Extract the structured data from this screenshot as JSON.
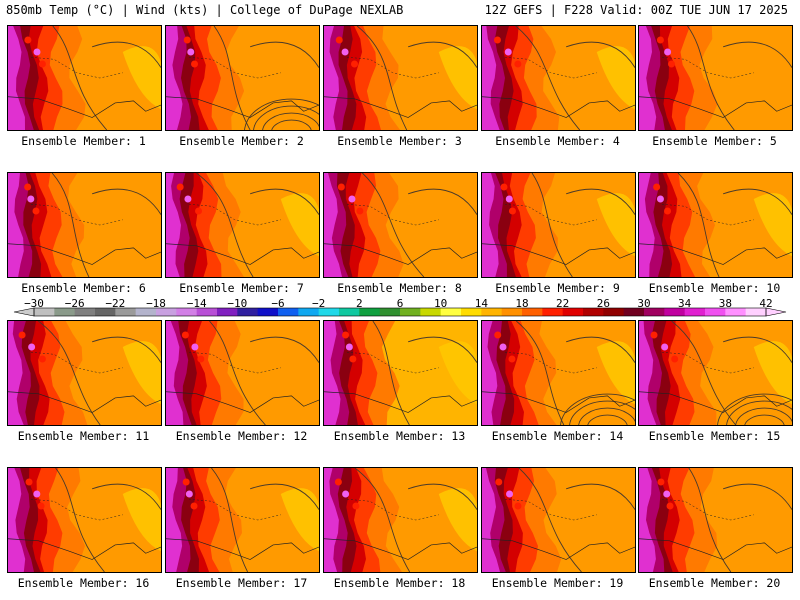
{
  "header": {
    "left": "850mb Temp (°C) | Wind (kts) | College of DuPage NEXLAB",
    "right": "12Z GEFS | F228 Valid: 00Z TUE JUN 17 2025"
  },
  "members": [
    {
      "label": "Ensemble Member: 1",
      "warmth": 0.45
    },
    {
      "label": "Ensemble Member: 2",
      "warmth": 0.35
    },
    {
      "label": "Ensemble Member: 3",
      "warmth": 0.5
    },
    {
      "label": "Ensemble Member: 4",
      "warmth": 0.55
    },
    {
      "label": "Ensemble Member: 5",
      "warmth": 0.4
    },
    {
      "label": "Ensemble Member: 6",
      "warmth": 0.4
    },
    {
      "label": "Ensemble Member: 7",
      "warmth": 0.55
    },
    {
      "label": "Ensemble Member: 8",
      "warmth": 0.35
    },
    {
      "label": "Ensemble Member: 9",
      "warmth": 0.5
    },
    {
      "label": "Ensemble Member: 10",
      "warmth": 0.5
    },
    {
      "label": "Ensemble Member: 11",
      "warmth": 0.45
    },
    {
      "label": "Ensemble Member: 12",
      "warmth": 0.4
    },
    {
      "label": "Ensemble Member: 13",
      "warmth": 0.6
    },
    {
      "label": "Ensemble Member: 14",
      "warmth": 0.55
    },
    {
      "label": "Ensemble Member: 15",
      "warmth": 0.5
    },
    {
      "label": "Ensemble Member: 16",
      "warmth": 0.55
    },
    {
      "label": "Ensemble Member: 17",
      "warmth": 0.45
    },
    {
      "label": "Ensemble Member: 18",
      "warmth": 0.5
    },
    {
      "label": "Ensemble Member: 19",
      "warmth": 0.4
    },
    {
      "label": "Ensemble Member: 20",
      "warmth": 0.3
    }
  ],
  "colorbar": {
    "ticks": [
      "-30",
      "-26",
      "-22",
      "-18",
      "-14",
      "-10",
      "-6",
      "-2",
      "2",
      "6",
      "10",
      "14",
      "18",
      "22",
      "26",
      "30",
      "34",
      "38",
      "42"
    ],
    "colors": [
      "#bfbfbf",
      "#8a9a8a",
      "#7f7f7f",
      "#666666",
      "#9a9a9a",
      "#b3b3cc",
      "#c8a0e0",
      "#d27fe6",
      "#b84fd6",
      "#8020c0",
      "#3020a0",
      "#1010c8",
      "#1060f0",
      "#10a8f0",
      "#20d8e8",
      "#10c8a0",
      "#10a040",
      "#309030",
      "#70b020",
      "#c8d800",
      "#ffff40",
      "#ffdc00",
      "#ffb400",
      "#ff9000",
      "#ff6000",
      "#ff2000",
      "#e00000",
      "#b00000",
      "#900000",
      "#700020",
      "#a00060",
      "#c000a0",
      "#e020d0",
      "#f050f0",
      "#ff90ff",
      "#ffd0ff"
    ]
  }
}
